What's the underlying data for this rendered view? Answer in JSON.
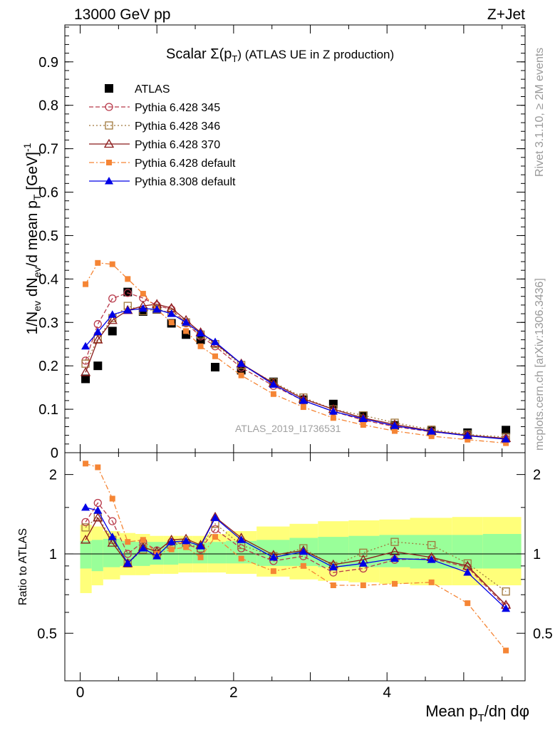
{
  "header": {
    "left": "13000 GeV pp",
    "right": "Z+Jet"
  },
  "side_labels": {
    "rivet": "Rivet 3.1.10, ≥ 2M events",
    "mcplots": "mcplots.cern.ch [arXiv:1306.3436]"
  },
  "chart_data": {
    "type": "line",
    "title_main": "Scalar Σ(p",
    "title_sub": "T",
    "title_rest": ") (ATLAS UE in Z production)",
    "watermark": "ATLAS_2019_I1736531",
    "ylabel_main": {
      "p1": "1/N",
      "s1": "ev",
      "p2": " dN",
      "s2": "ev",
      "p3": "/d mean p",
      "s3": "T",
      "p4": " [GeV]",
      "sup": "-1"
    },
    "ylabel_ratio": "Ratio to ATLAS",
    "xlabel": {
      "p1": "Mean p",
      "s1": "T",
      "p2": "/dη dφ"
    },
    "xlim": [
      -0.2,
      5.8
    ],
    "ylim_main": [
      0,
      0.985
    ],
    "ylim_ratio": [
      0.33,
      2.42
    ],
    "x_ticks": [
      "0",
      "2",
      "4"
    ],
    "y_ticks_main": [
      "0",
      "0.1",
      "0.2",
      "0.3",
      "0.4",
      "0.5",
      "0.6",
      "0.7",
      "0.8",
      "0.9"
    ],
    "y_ticks_ratio": [
      "0.5",
      "1",
      "2"
    ],
    "y_ticks_ratio_right": [
      "0.5",
      "1",
      "2"
    ],
    "x": [
      0.07,
      0.23,
      0.42,
      0.62,
      0.82,
      1.0,
      1.19,
      1.38,
      1.57,
      1.76,
      2.1,
      2.52,
      2.91,
      3.3,
      3.69,
      4.1,
      4.58,
      5.05,
      5.55
    ],
    "bin_edges": [
      0.0,
      0.15,
      0.3,
      0.52,
      0.72,
      0.91,
      1.09,
      1.28,
      1.47,
      1.66,
      1.9,
      2.3,
      2.73,
      3.1,
      3.5,
      3.9,
      4.3,
      4.85,
      5.25,
      5.75
    ],
    "band_inner": [
      [
        0.88,
        1.12
      ],
      [
        0.86,
        1.13
      ],
      [
        0.89,
        1.14
      ],
      [
        0.9,
        1.12
      ],
      [
        0.9,
        1.11
      ],
      [
        0.91,
        1.11
      ],
      [
        0.91,
        1.11
      ],
      [
        0.92,
        1.1
      ],
      [
        0.92,
        1.1
      ],
      [
        0.92,
        1.11
      ],
      [
        0.92,
        1.12
      ],
      [
        0.9,
        1.13
      ],
      [
        0.9,
        1.15
      ],
      [
        0.89,
        1.16
      ],
      [
        0.89,
        1.17
      ],
      [
        0.89,
        1.18
      ],
      [
        0.88,
        1.18
      ],
      [
        0.88,
        1.18
      ],
      [
        0.88,
        1.19
      ]
    ],
    "band_outer": [
      [
        0.71,
        1.29
      ],
      [
        0.76,
        1.27
      ],
      [
        0.8,
        1.22
      ],
      [
        0.83,
        1.2
      ],
      [
        0.83,
        1.19
      ],
      [
        0.84,
        1.17
      ],
      [
        0.84,
        1.17
      ],
      [
        0.85,
        1.17
      ],
      [
        0.85,
        1.17
      ],
      [
        0.85,
        1.19
      ],
      [
        0.84,
        1.22
      ],
      [
        0.82,
        1.27
      ],
      [
        0.8,
        1.3
      ],
      [
        0.79,
        1.33
      ],
      [
        0.78,
        1.34
      ],
      [
        0.77,
        1.35
      ],
      [
        0.76,
        1.37
      ],
      [
        0.76,
        1.38
      ],
      [
        0.76,
        1.38
      ]
    ],
    "series": [
      {
        "name": "ATLAS",
        "color": "#000000",
        "marker": "square-filled",
        "dash": "none",
        "values": [
          0.17,
          0.2,
          0.28,
          0.37,
          0.325,
          0.33,
          0.298,
          0.272,
          0.26,
          0.197,
          0.19,
          0.163,
          0.122,
          0.112,
          0.085,
          0.063,
          0.05,
          0.046,
          0.052
        ]
      },
      {
        "name": "Pythia 6.428 345",
        "color": "#b83a4b",
        "marker": "circle-open",
        "dash": "6,3",
        "values": [
          0.212,
          0.296,
          0.355,
          0.368,
          0.356,
          0.339,
          0.33,
          0.298,
          0.268,
          0.245,
          0.196,
          0.154,
          0.12,
          0.095,
          0.075,
          0.06,
          0.048,
          0.04,
          0.032
        ],
        "ratio": [
          1.32,
          1.56,
          1.33,
          1.0,
          1.11,
          1.03,
          1.11,
          1.09,
          1.04,
          1.24,
          1.05,
          0.94,
          0.98,
          0.85,
          0.88,
          0.95,
          0.96,
          0.89,
          0.63
        ]
      },
      {
        "name": "Pythia 6.428 346",
        "color": "#a0783c",
        "marker": "square-open",
        "dash": "2,3",
        "values": [
          0.205,
          0.262,
          0.31,
          0.338,
          0.326,
          0.33,
          0.322,
          0.3,
          0.272,
          0.25,
          0.202,
          0.162,
          0.127,
          0.1,
          0.086,
          0.069,
          0.053,
          0.042,
          0.036
        ],
        "ratio": [
          1.26,
          1.38,
          1.13,
          0.92,
          1.04,
          1.0,
          1.08,
          1.1,
          1.05,
          1.3,
          1.08,
          0.98,
          1.05,
          0.9,
          1.01,
          1.11,
          1.08,
          0.92,
          0.72
        ]
      },
      {
        "name": "Pythia 6.428 370",
        "color": "#8b1a1a",
        "marker": "triangle-open",
        "dash": "none",
        "values": [
          0.185,
          0.26,
          0.305,
          0.328,
          0.338,
          0.342,
          0.333,
          0.305,
          0.277,
          0.252,
          0.205,
          0.16,
          0.124,
          0.1,
          0.08,
          0.065,
          0.05,
          0.04,
          0.033
        ],
        "ratio": [
          1.13,
          1.37,
          1.1,
          0.92,
          1.06,
          1.02,
          1.13,
          1.14,
          1.08,
          1.38,
          1.15,
          0.99,
          1.03,
          0.91,
          0.95,
          1.02,
          0.97,
          0.9,
          0.64
        ]
      },
      {
        "name": "Pythia 6.428 default",
        "color": "#f58535",
        "marker": "square-filled-small",
        "dash": "7,3,2,3",
        "values": [
          0.388,
          0.437,
          0.434,
          0.4,
          0.366,
          0.33,
          0.3,
          0.28,
          0.245,
          0.222,
          0.178,
          0.135,
          0.105,
          0.08,
          0.064,
          0.05,
          0.038,
          0.03,
          0.022
        ],
        "ratio": [
          2.2,
          2.13,
          1.62,
          1.11,
          1.13,
          1.0,
          1.04,
          1.06,
          0.97,
          1.16,
          0.96,
          0.86,
          0.9,
          0.76,
          0.76,
          0.77,
          0.78,
          0.65,
          0.43
        ]
      },
      {
        "name": "Pythia 8.308 default",
        "color": "#0000e6",
        "marker": "triangle-filled",
        "dash": "none",
        "values": [
          0.245,
          0.278,
          0.318,
          0.328,
          0.332,
          0.33,
          0.32,
          0.3,
          0.275,
          0.255,
          0.205,
          0.157,
          0.12,
          0.095,
          0.078,
          0.062,
          0.049,
          0.039,
          0.031
        ],
        "ratio": [
          1.5,
          1.46,
          1.16,
          0.92,
          1.05,
          0.98,
          1.11,
          1.12,
          1.07,
          1.37,
          1.13,
          0.97,
          1.02,
          0.89,
          0.92,
          0.96,
          0.95,
          0.85,
          0.62
        ]
      }
    ]
  }
}
